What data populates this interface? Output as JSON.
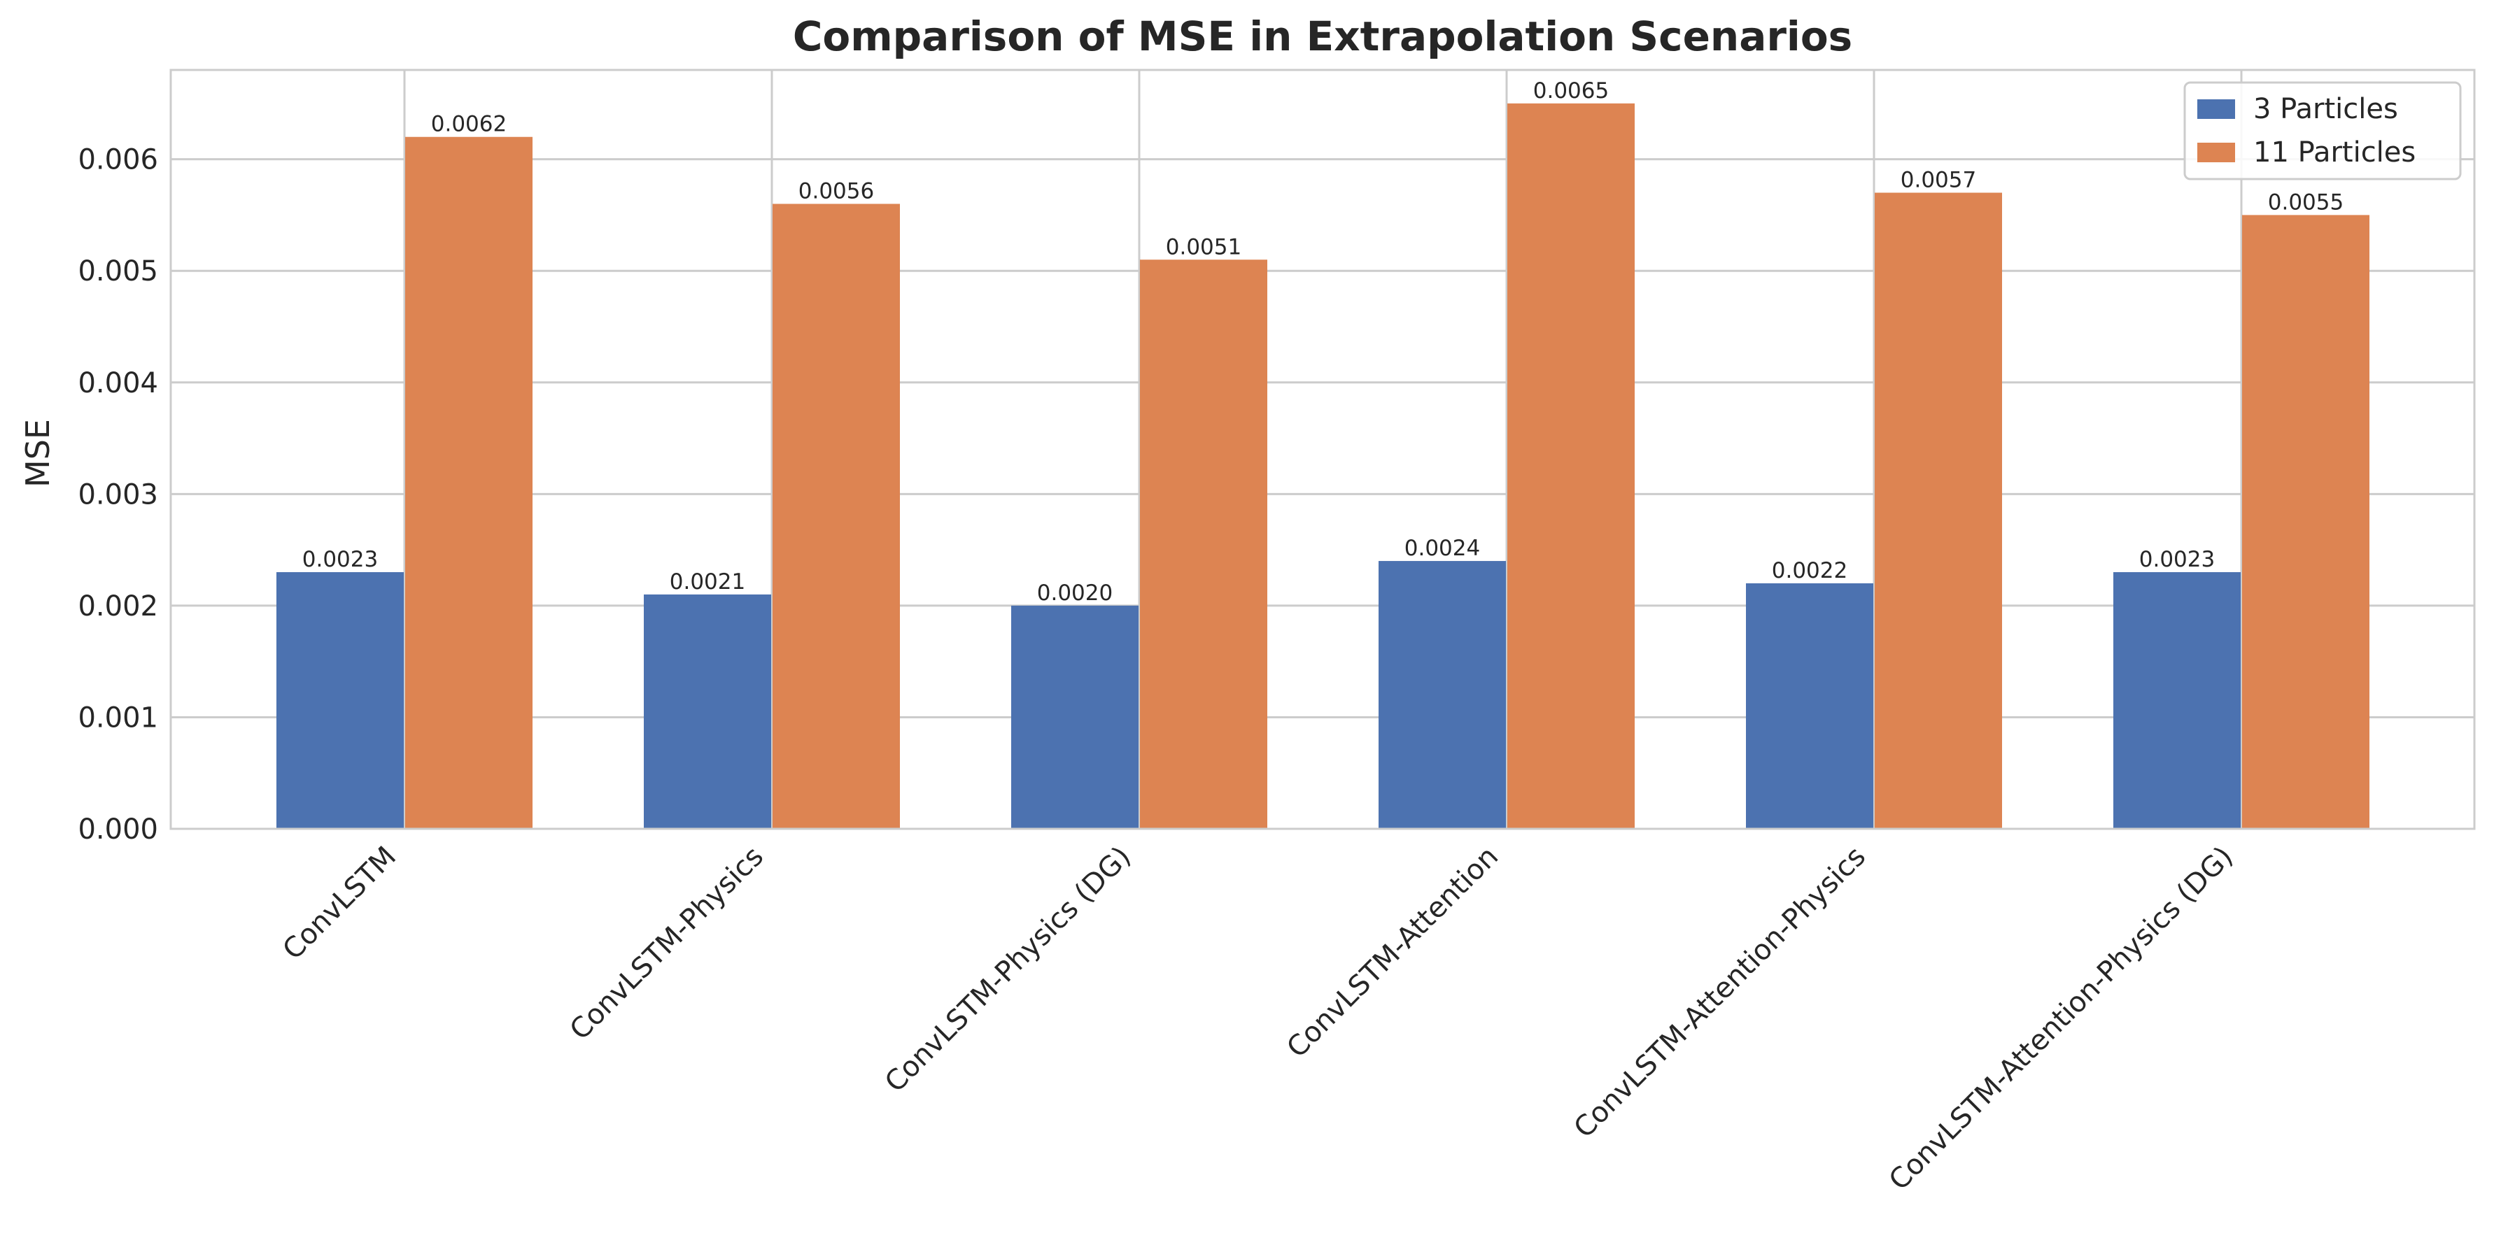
{
  "chart_data": {
    "type": "bar",
    "title": "Comparison of MSE in Extrapolation Scenarios",
    "xlabel": "",
    "ylabel": "MSE",
    "ylim": [
      0,
      0.0068
    ],
    "yticks": [
      "0.000",
      "0.001",
      "0.002",
      "0.003",
      "0.004",
      "0.005",
      "0.006"
    ],
    "grid": true,
    "legend_position": "top-right",
    "categories": [
      "ConvLSTM",
      "ConvLSTM-Physics",
      "ConvLSTM-Physics (DG)",
      "ConvLSTM-Attention",
      "ConvLSTM-Attention-Physics",
      "ConvLSTM-Attention-Physics (DG)"
    ],
    "series": [
      {
        "name": "3 Particles",
        "color": "#4c72b0",
        "values": [
          0.0023,
          0.0021,
          0.002,
          0.0024,
          0.0022,
          0.0023
        ],
        "labels": [
          "0.0023",
          "0.0021",
          "0.0020",
          "0.0024",
          "0.0022",
          "0.0023"
        ]
      },
      {
        "name": "11 Particles",
        "color": "#dd8452",
        "values": [
          0.0062,
          0.0056,
          0.0051,
          0.0065,
          0.0057,
          0.0055
        ],
        "labels": [
          "0.0062",
          "0.0056",
          "0.0051",
          "0.0065",
          "0.0057",
          "0.0055"
        ]
      }
    ]
  }
}
